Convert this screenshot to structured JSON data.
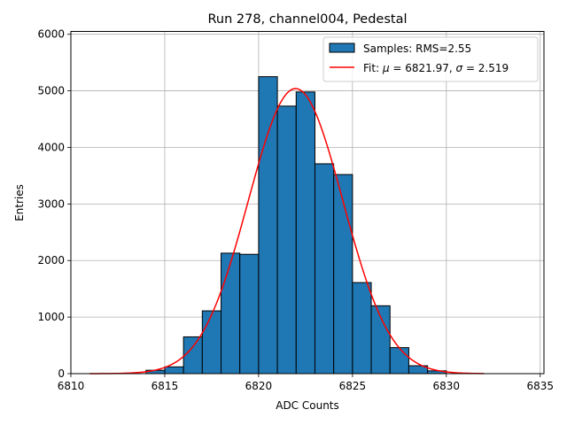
{
  "chart_data": {
    "type": "bar",
    "title": "Run 278, channel004, Pedestal",
    "xlabel": "ADC Counts",
    "ylabel": "Entries",
    "xlim": [
      6810,
      6835.2
    ],
    "ylim": [
      0,
      6050
    ],
    "grid": true,
    "legend_position": "top-right",
    "x_ticks": [
      6810,
      6815,
      6820,
      6825,
      6830,
      6835
    ],
    "y_ticks": [
      0,
      1000,
      2000,
      3000,
      4000,
      5000,
      6000
    ],
    "histogram": {
      "name": "Samples: RMS=2.55",
      "color": "#1f77b4",
      "edgecolor": "#000000",
      "bin_edges": [
        6814,
        6815,
        6816,
        6817,
        6818,
        6819,
        6820,
        6821,
        6822,
        6823,
        6824,
        6825,
        6826,
        6827,
        6828,
        6829,
        6830
      ],
      "counts": [
        60,
        120,
        650,
        1110,
        2130,
        2110,
        5250,
        4730,
        4980,
        3710,
        3520,
        1610,
        1200,
        460,
        140,
        50
      ]
    },
    "fit": {
      "name_prefix": "Fit: ",
      "name_mu_symbol": "μ",
      "name_mu_value": " = 6821.97, ",
      "name_sigma_symbol": "σ",
      "name_sigma_value": " = 2.519",
      "mu": 6821.97,
      "sigma": 2.519,
      "amplitude": 5040,
      "x_range": [
        6811,
        6832
      ],
      "color": "#ff0000"
    }
  }
}
